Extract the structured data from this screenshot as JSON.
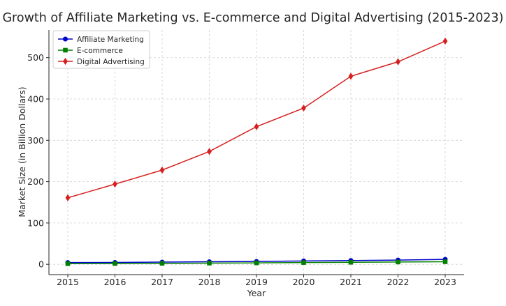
{
  "chart_data": {
    "type": "line",
    "title": "Growth of Affiliate Marketing vs. E-commerce and Digital Advertising (2015-2023)",
    "xlabel": "Year",
    "ylabel": "Market Size (in Billion Dollars)",
    "x": [
      "2015",
      "2016",
      "2017",
      "2018",
      "2019",
      "2020",
      "2021",
      "2022",
      "2023"
    ],
    "ylim": [
      -25,
      567
    ],
    "yticks": [
      0,
      100,
      200,
      300,
      400,
      500
    ],
    "grid": true,
    "legend_position": "top-left",
    "series": [
      {
        "name": "Affiliate Marketing",
        "color": "#0000cc",
        "marker": "circle",
        "values": [
          4.2,
          4.5,
          5.4,
          6.2,
          6.8,
          8.2,
          9.1,
          10.2,
          12.0
        ]
      },
      {
        "name": "E-commerce",
        "color": "#008000",
        "marker": "square",
        "values": [
          1.55,
          1.85,
          2.3,
          2.84,
          3.45,
          4.28,
          4.9,
          5.5,
          6.2
        ]
      },
      {
        "name": "Digital Advertising",
        "color": "#d62020",
        "marker": "diamond",
        "values": [
          161,
          194,
          228,
          273,
          333,
          378,
          455,
          490,
          540
        ]
      }
    ]
  }
}
